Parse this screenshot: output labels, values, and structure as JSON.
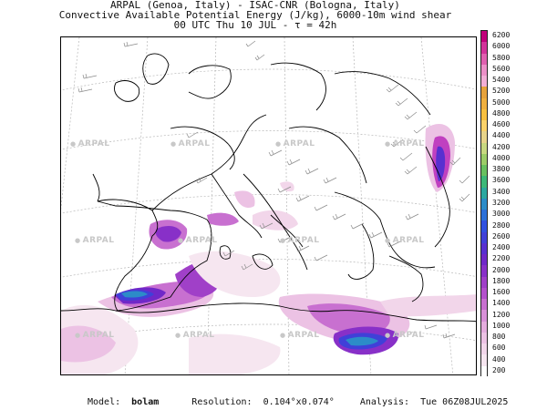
{
  "header": {
    "line1": "ARPAL (Genoa, Italy)  -  ISAC-CNR (Bologna, Italy)",
    "line2": "Convective Available Potential Energy (J/kg), 6000-10m wind shear",
    "line3": "00 UTC Thu 10 JUL  -  τ = 42h"
  },
  "watermark": {
    "text": "ARPAL"
  },
  "colorbar": {
    "labels": [
      "6200",
      "6000",
      "5800",
      "5600",
      "5400",
      "5200",
      "5000",
      "4800",
      "4600",
      "4400",
      "4200",
      "4000",
      "3800",
      "3600",
      "3400",
      "3200",
      "3000",
      "2800",
      "2600",
      "2400",
      "2200",
      "2000",
      "1800",
      "1600",
      "1400",
      "1200",
      "1000",
      "800",
      "600",
      "400",
      "200"
    ],
    "colors": [
      "#c0007a",
      "#d2339a",
      "#e060b0",
      "#ec90c8",
      "#f2aed6",
      "#e6a23c",
      "#f0b040",
      "#f8c040",
      "#fbd26a",
      "#e8d48a",
      "#c8d880",
      "#9ccc68",
      "#68c060",
      "#3cb878",
      "#2ca8a0",
      "#2c8cc8",
      "#2c70d8",
      "#3050e0",
      "#4040d8",
      "#5830d0",
      "#7028c8",
      "#8830c8",
      "#a040c8",
      "#b450cc",
      "#c870d0",
      "#d890d8",
      "#e4acde",
      "#ecc2e4",
      "#f2d6ea",
      "#f6e6f0",
      "#ffffff"
    ]
  },
  "footer": {
    "model_label": "Model:",
    "model_value": "bolam",
    "resolution_label": "Resolution:",
    "resolution_value": "0.104°x0.074°",
    "analysis_label": "Analysis:",
    "analysis_value": "Tue 06Z08JUL2025"
  }
}
